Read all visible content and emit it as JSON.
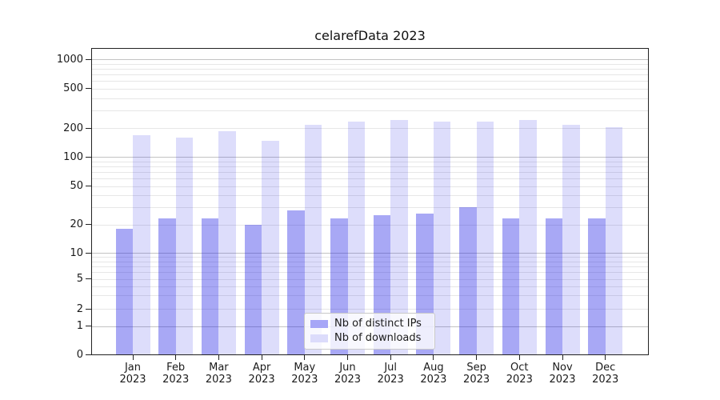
{
  "title": "celarefData 2023",
  "chart_data": {
    "type": "bar",
    "title": "celarefData 2023",
    "categories": [
      "Jan 2023",
      "Feb 2023",
      "Mar 2023",
      "Apr 2023",
      "May 2023",
      "Jun 2023",
      "Jul 2023",
      "Aug 2023",
      "Sep 2023",
      "Oct 2023",
      "Nov 2023",
      "Dec 2023"
    ],
    "category_line1": [
      "Jan",
      "Feb",
      "Mar",
      "Apr",
      "May",
      "Jun",
      "Jul",
      "Aug",
      "Sep",
      "Oct",
      "Nov",
      "Dec"
    ],
    "category_line2": "2023",
    "series": [
      {
        "name": "Nb of distinct IPs",
        "values": [
          18,
          23,
          23,
          20,
          28,
          23,
          25,
          26,
          30,
          23,
          23,
          23
        ],
        "fill": "rgba(25,25,230,0.38)",
        "legend_hex": "#a6a6f7"
      },
      {
        "name": "Nb of downloads",
        "values": [
          168,
          160,
          185,
          147,
          214,
          230,
          239,
          234,
          231,
          242,
          216,
          202
        ],
        "fill": "rgba(25,25,230,0.15)",
        "legend_hex": "#dcdcfb"
      }
    ],
    "yscale": "log",
    "yticks": [
      0,
      1,
      2,
      5,
      10,
      20,
      50,
      100,
      200,
      500,
      1000
    ],
    "ylim": [
      0,
      1300
    ],
    "xlabel": "",
    "ylabel": "",
    "grid": true,
    "legend_position": "lower center"
  },
  "colors": {
    "grid_major": "#c3c3c3",
    "grid_minor": "#e7e7e7",
    "axis": "#222222",
    "text": "#1a1a1a"
  }
}
